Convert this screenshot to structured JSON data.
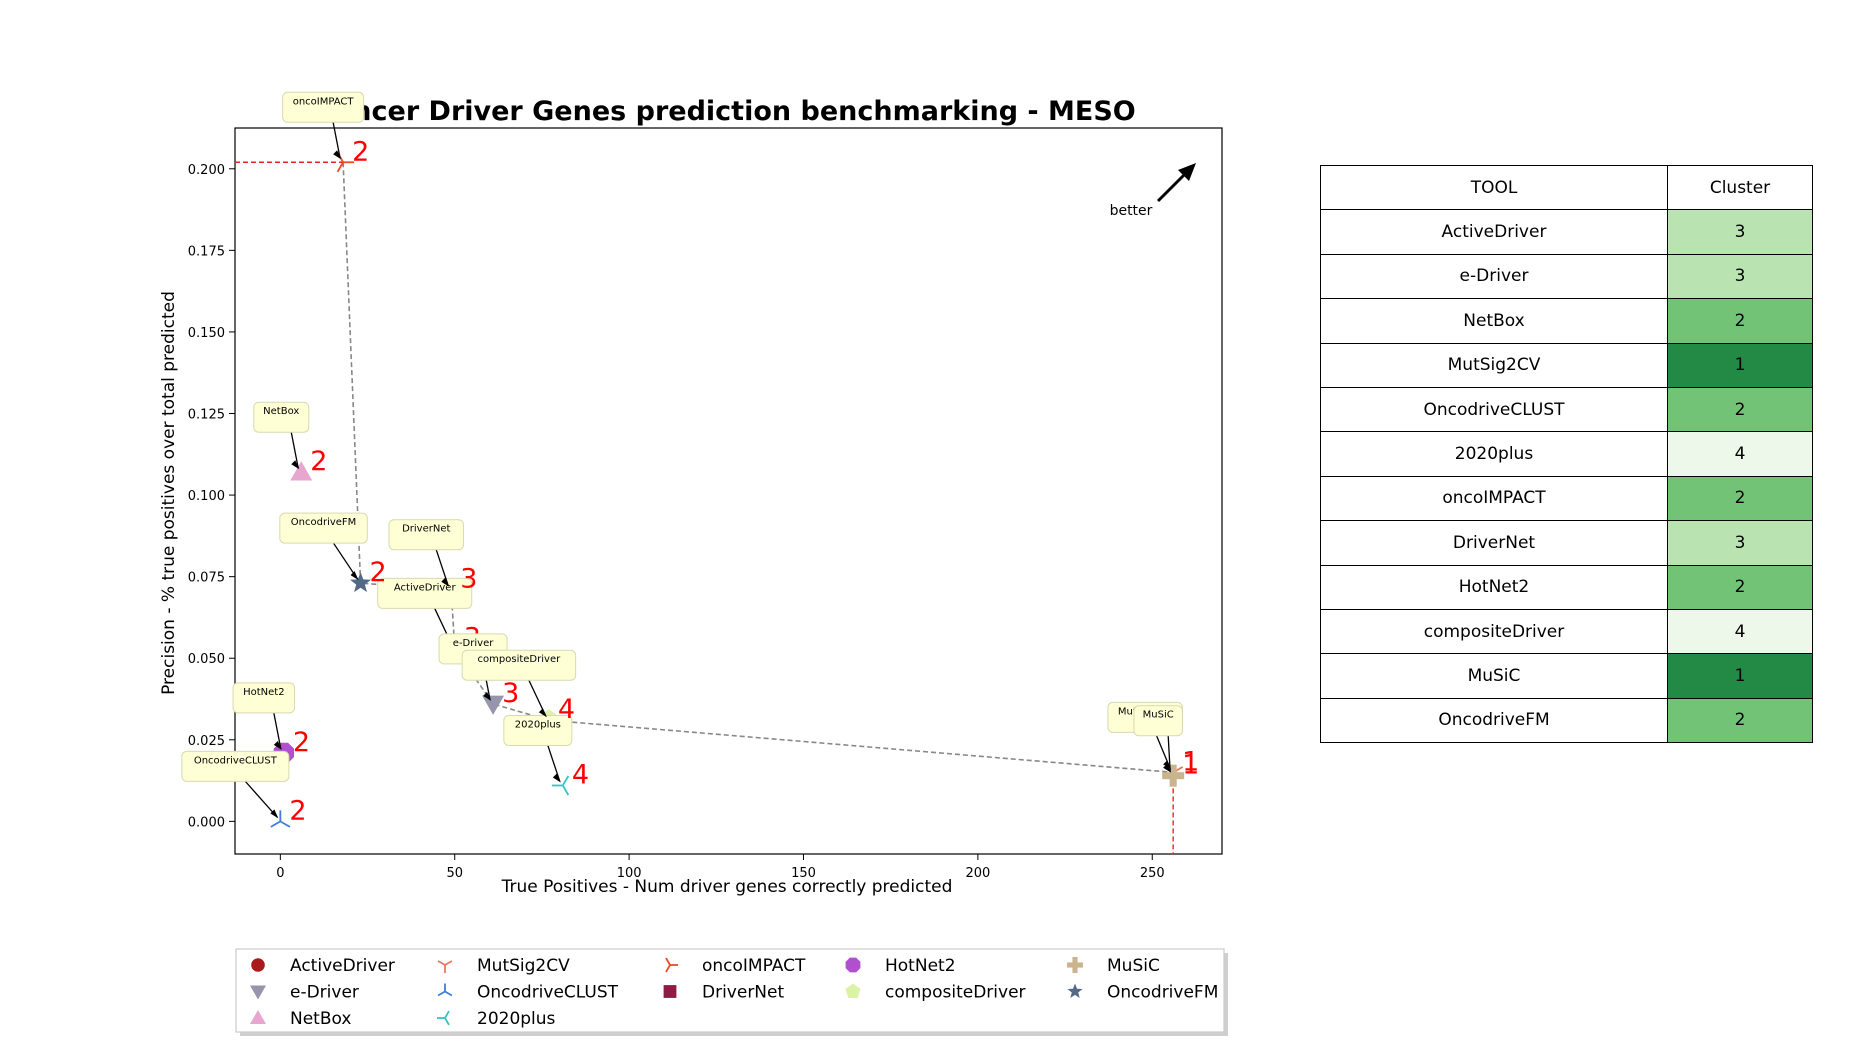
{
  "chart_data": {
    "type": "scatter",
    "title": "Cancer Driver Genes prediction benchmarking - MESO",
    "xlabel": "True Positives - Num driver genes correctly predicted",
    "ylabel": "Precision - % true positives over total predicted",
    "xlim": [
      -13,
      270
    ],
    "ylim": [
      -0.01,
      0.2125
    ],
    "xticks": [
      0,
      50,
      100,
      150,
      200,
      250
    ],
    "xtick_labels": [
      "0",
      "50",
      "100",
      "150",
      "200",
      "250"
    ],
    "yticks": [
      0.0,
      0.025,
      0.05,
      0.075,
      0.1,
      0.125,
      0.15,
      0.175,
      0.2
    ],
    "ytick_labels": [
      "0.000",
      "0.025",
      "0.050",
      "0.075",
      "0.100",
      "0.125",
      "0.150",
      "0.175",
      "0.200"
    ],
    "better_label": "better",
    "series": [
      {
        "name": "ActiveDriver",
        "x": 50,
        "y": 0.053,
        "cluster": "3",
        "marker": "circle",
        "color": "#aa1a1a"
      },
      {
        "name": "e-Driver",
        "x": 61,
        "y": 0.036,
        "cluster": "3",
        "marker": "triangle-down",
        "color": "#9595ad"
      },
      {
        "name": "NetBox",
        "x": 6,
        "y": 0.107,
        "cluster": "2",
        "marker": "triangle-up",
        "color": "#e6a6cf"
      },
      {
        "name": "MutSig2CV",
        "x": 256,
        "y": 0.015,
        "cluster": "1",
        "marker": "tri-down",
        "color": "#e8795f"
      },
      {
        "name": "OncodriveCLUST",
        "x": 0,
        "y": 0.0,
        "cluster": "2",
        "marker": "tri-up",
        "color": "#3f7dd6"
      },
      {
        "name": "2020plus",
        "x": 81,
        "y": 0.011,
        "cluster": "4",
        "marker": "tri-left",
        "color": "#36c4c4"
      },
      {
        "name": "oncoIMPACT",
        "x": 18,
        "y": 0.202,
        "cluster": "2",
        "marker": "tri-right",
        "color": "#e84a2a"
      },
      {
        "name": "DriverNet",
        "x": 49,
        "y": 0.071,
        "cluster": "3",
        "marker": "square",
        "color": "#8f1c45"
      },
      {
        "name": "HotNet2",
        "x": 1,
        "y": 0.021,
        "cluster": "2",
        "marker": "octagon",
        "color": "#b04fd0"
      },
      {
        "name": "compositeDriver",
        "x": 77,
        "y": 0.031,
        "cluster": "4",
        "marker": "pentagon",
        "color": "#dcf2a8"
      },
      {
        "name": "MuSiC",
        "x": 256,
        "y": 0.014,
        "cluster": "1",
        "marker": "plus",
        "color": "#c9b48d"
      },
      {
        "name": "OncodriveFM",
        "x": 23,
        "y": 0.073,
        "cluster": "2",
        "marker": "star",
        "color": "#526a86"
      }
    ],
    "pareto_front": [
      [
        18,
        0.202
      ],
      [
        23,
        0.073
      ],
      [
        49,
        0.071
      ],
      [
        50,
        0.053
      ],
      [
        61,
        0.036
      ],
      [
        77,
        0.031
      ],
      [
        256,
        0.015
      ]
    ],
    "legend_columns": [
      [
        "ActiveDriver",
        "e-Driver",
        "NetBox"
      ],
      [
        "MutSig2CV",
        "OncodriveCLUST",
        "2020plus"
      ],
      [
        "oncoIMPACT",
        "DriverNet"
      ],
      [
        "HotNet2",
        "compositeDriver"
      ],
      [
        "MuSiC",
        "OncodriveFM"
      ]
    ],
    "legend_placement": "bottom",
    "grid": false
  },
  "table": {
    "headers": [
      "TOOL",
      "Cluster"
    ],
    "rows": [
      {
        "tool": "ActiveDriver",
        "cluster": "3",
        "color": "#b9e4b2"
      },
      {
        "tool": "e-Driver",
        "cluster": "3",
        "color": "#b9e4b2"
      },
      {
        "tool": "NetBox",
        "cluster": "2",
        "color": "#72c375"
      },
      {
        "tool": "MutSig2CV",
        "cluster": "1",
        "color": "#228a44"
      },
      {
        "tool": "OncodriveCLUST",
        "cluster": "2",
        "color": "#72c375"
      },
      {
        "tool": "2020plus",
        "cluster": "4",
        "color": "#eef8ea"
      },
      {
        "tool": "oncoIMPACT",
        "cluster": "2",
        "color": "#72c375"
      },
      {
        "tool": "DriverNet",
        "cluster": "3",
        "color": "#b9e4b2"
      },
      {
        "tool": "HotNet2",
        "cluster": "2",
        "color": "#72c375"
      },
      {
        "tool": "compositeDriver",
        "cluster": "4",
        "color": "#eef8ea"
      },
      {
        "tool": "MuSiC",
        "cluster": "1",
        "color": "#228a44"
      },
      {
        "tool": "OncodriveFM",
        "cluster": "2",
        "color": "#72c375"
      }
    ]
  }
}
